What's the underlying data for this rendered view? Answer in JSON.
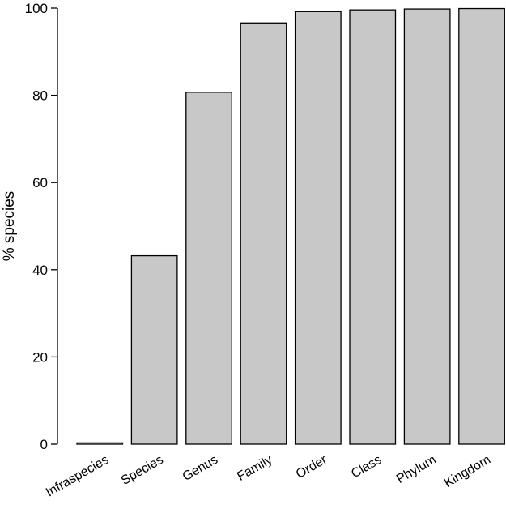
{
  "chart_data": {
    "type": "bar",
    "title": "",
    "xlabel": "",
    "ylabel": "% species",
    "ylim": [
      0,
      100
    ],
    "yticks": [
      0,
      20,
      40,
      60,
      80,
      100
    ],
    "categories": [
      "Infraspecies",
      "Species",
      "Genus",
      "Family",
      "Order",
      "Class",
      "Phylum",
      "Kingdom"
    ],
    "values": [
      0.3,
      43.2,
      80.7,
      96.6,
      99.2,
      99.6,
      99.8,
      99.9
    ],
    "bar_color": "#c8c8c8",
    "bar_edge_color": "#000000",
    "grid": false,
    "legend": "none"
  }
}
